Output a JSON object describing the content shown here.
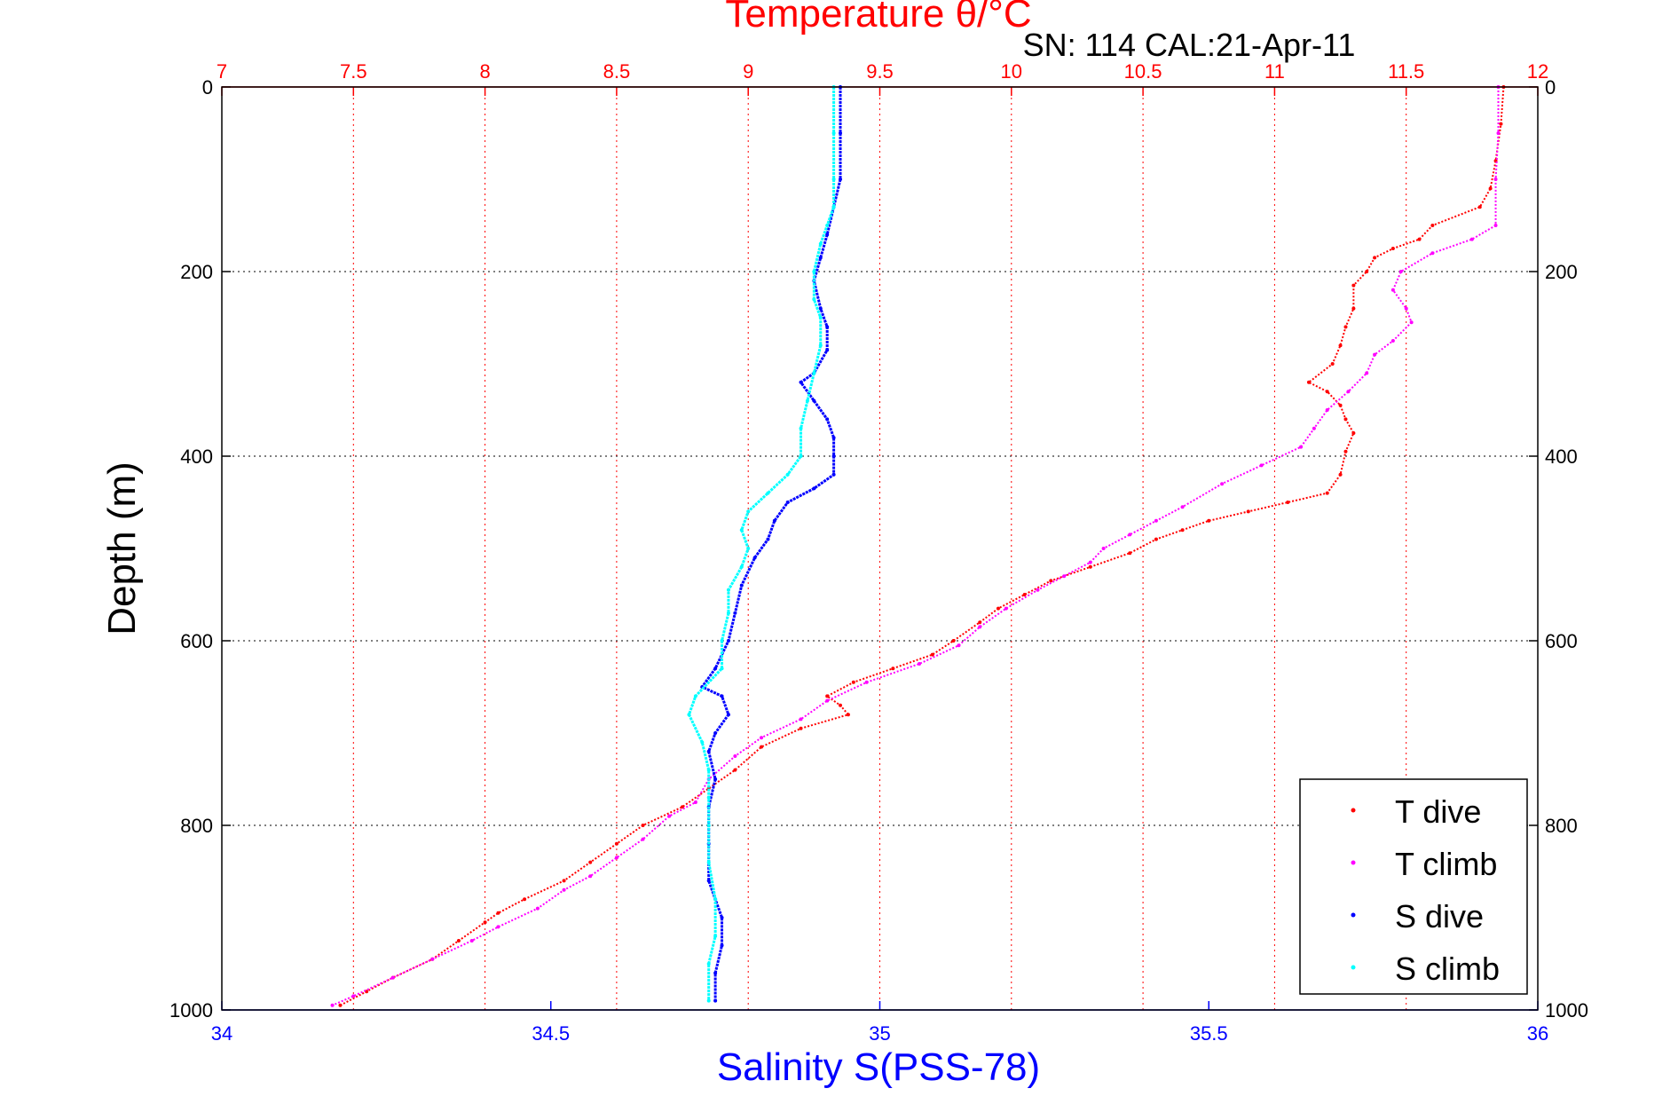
{
  "chart_data": {
    "type": "scatter",
    "title": "Temperature θ/°C",
    "subtitle": "SN: 114  CAL:21-Apr-11",
    "ylabel": "Depth (m)",
    "x_bottom_label": "Salinity S(PSS-78)",
    "x_top_label": "Temperature θ/°C",
    "y_range": [
      0,
      1000
    ],
    "y_reversed": true,
    "y_ticks": [
      "0",
      "200",
      "400",
      "600",
      "800",
      "1000"
    ],
    "x_top_range": [
      7,
      12
    ],
    "x_top_ticks": [
      "7",
      "7.5",
      "8",
      "8.5",
      "9",
      "9.5",
      "10",
      "10.5",
      "11",
      "11.5",
      "12"
    ],
    "x_bottom_range": [
      34,
      36
    ],
    "x_bottom_ticks": [
      "34",
      "34.5",
      "35",
      "35.5",
      "36"
    ],
    "grid": true,
    "legend_position": "bottom-right",
    "colors": {
      "temperature_axis": "#ff0000",
      "salinity_axis": "#0000ff",
      "grid": "#000000"
    },
    "series": [
      {
        "name": "T dive",
        "axis": "temperature",
        "color": "#ff0000",
        "points": [
          [
            11.87,
            0
          ],
          [
            11.86,
            40
          ],
          [
            11.84,
            80
          ],
          [
            11.82,
            110
          ],
          [
            11.78,
            130
          ],
          [
            11.6,
            150
          ],
          [
            11.55,
            165
          ],
          [
            11.45,
            175
          ],
          [
            11.38,
            185
          ],
          [
            11.35,
            200
          ],
          [
            11.3,
            215
          ],
          [
            11.3,
            240
          ],
          [
            11.27,
            260
          ],
          [
            11.25,
            280
          ],
          [
            11.22,
            300
          ],
          [
            11.13,
            320
          ],
          [
            11.2,
            330
          ],
          [
            11.25,
            345
          ],
          [
            11.27,
            360
          ],
          [
            11.3,
            375
          ],
          [
            11.27,
            395
          ],
          [
            11.25,
            420
          ],
          [
            11.2,
            440
          ],
          [
            11.05,
            450
          ],
          [
            10.9,
            460
          ],
          [
            10.75,
            470
          ],
          [
            10.65,
            480
          ],
          [
            10.55,
            490
          ],
          [
            10.45,
            505
          ],
          [
            10.3,
            520
          ],
          [
            10.15,
            535
          ],
          [
            10.05,
            550
          ],
          [
            9.95,
            565
          ],
          [
            9.88,
            580
          ],
          [
            9.78,
            600
          ],
          [
            9.7,
            615
          ],
          [
            9.55,
            630
          ],
          [
            9.4,
            645
          ],
          [
            9.3,
            660
          ],
          [
            9.35,
            670
          ],
          [
            9.38,
            680
          ],
          [
            9.2,
            695
          ],
          [
            9.05,
            715
          ],
          [
            8.95,
            740
          ],
          [
            8.85,
            760
          ],
          [
            8.75,
            780
          ],
          [
            8.6,
            800
          ],
          [
            8.5,
            820
          ],
          [
            8.4,
            840
          ],
          [
            8.3,
            860
          ],
          [
            8.15,
            880
          ],
          [
            8.05,
            895
          ],
          [
            8.0,
            905
          ],
          [
            7.9,
            925
          ],
          [
            7.8,
            945
          ],
          [
            7.65,
            965
          ],
          [
            7.55,
            980
          ],
          [
            7.45,
            995
          ]
        ]
      },
      {
        "name": "T climb",
        "axis": "temperature",
        "color": "#ff00ff",
        "points": [
          [
            11.85,
            0
          ],
          [
            11.85,
            50
          ],
          [
            11.84,
            100
          ],
          [
            11.84,
            150
          ],
          [
            11.75,
            165
          ],
          [
            11.6,
            180
          ],
          [
            11.48,
            200
          ],
          [
            11.45,
            220
          ],
          [
            11.5,
            240
          ],
          [
            11.52,
            255
          ],
          [
            11.45,
            275
          ],
          [
            11.38,
            290
          ],
          [
            11.35,
            310
          ],
          [
            11.28,
            330
          ],
          [
            11.2,
            350
          ],
          [
            11.15,
            370
          ],
          [
            11.1,
            390
          ],
          [
            10.95,
            410
          ],
          [
            10.8,
            430
          ],
          [
            10.65,
            455
          ],
          [
            10.55,
            470
          ],
          [
            10.45,
            485
          ],
          [
            10.35,
            500
          ],
          [
            10.3,
            515
          ],
          [
            10.2,
            530
          ],
          [
            10.1,
            545
          ],
          [
            9.98,
            565
          ],
          [
            9.88,
            585
          ],
          [
            9.8,
            605
          ],
          [
            9.65,
            625
          ],
          [
            9.45,
            645
          ],
          [
            9.3,
            665
          ],
          [
            9.2,
            685
          ],
          [
            9.05,
            705
          ],
          [
            8.95,
            725
          ],
          [
            8.85,
            750
          ],
          [
            8.8,
            775
          ],
          [
            8.7,
            790
          ],
          [
            8.6,
            815
          ],
          [
            8.5,
            835
          ],
          [
            8.4,
            855
          ],
          [
            8.3,
            870
          ],
          [
            8.2,
            890
          ],
          [
            8.05,
            910
          ],
          [
            7.95,
            925
          ],
          [
            7.8,
            945
          ],
          [
            7.65,
            965
          ],
          [
            7.5,
            985
          ],
          [
            7.42,
            995
          ]
        ]
      },
      {
        "name": "S dive",
        "axis": "salinity",
        "color": "#0000ff",
        "points": [
          [
            34.94,
            0
          ],
          [
            34.94,
            50
          ],
          [
            34.94,
            100
          ],
          [
            34.93,
            130
          ],
          [
            34.92,
            160
          ],
          [
            34.91,
            185
          ],
          [
            34.9,
            210
          ],
          [
            34.91,
            240
          ],
          [
            34.92,
            260
          ],
          [
            34.92,
            285
          ],
          [
            34.9,
            310
          ],
          [
            34.88,
            320
          ],
          [
            34.9,
            340
          ],
          [
            34.92,
            360
          ],
          [
            34.93,
            380
          ],
          [
            34.93,
            400
          ],
          [
            34.93,
            420
          ],
          [
            34.9,
            435
          ],
          [
            34.86,
            450
          ],
          [
            34.84,
            470
          ],
          [
            34.83,
            490
          ],
          [
            34.81,
            510
          ],
          [
            34.79,
            540
          ],
          [
            34.78,
            570
          ],
          [
            34.77,
            600
          ],
          [
            34.75,
            630
          ],
          [
            34.73,
            650
          ],
          [
            34.76,
            660
          ],
          [
            34.77,
            680
          ],
          [
            34.75,
            700
          ],
          [
            34.74,
            720
          ],
          [
            34.75,
            750
          ],
          [
            34.74,
            780
          ],
          [
            34.74,
            820
          ],
          [
            34.74,
            860
          ],
          [
            34.75,
            880
          ],
          [
            34.76,
            900
          ],
          [
            34.76,
            930
          ],
          [
            34.75,
            960
          ],
          [
            34.75,
            990
          ]
        ]
      },
      {
        "name": "S climb",
        "axis": "salinity",
        "color": "#00ffff",
        "points": [
          [
            34.93,
            0
          ],
          [
            34.93,
            50
          ],
          [
            34.93,
            100
          ],
          [
            34.93,
            130
          ],
          [
            34.92,
            150
          ],
          [
            34.91,
            170
          ],
          [
            34.9,
            200
          ],
          [
            34.9,
            230
          ],
          [
            34.91,
            250
          ],
          [
            34.91,
            280
          ],
          [
            34.9,
            310
          ],
          [
            34.89,
            340
          ],
          [
            34.88,
            370
          ],
          [
            34.88,
            400
          ],
          [
            34.86,
            420
          ],
          [
            34.83,
            440
          ],
          [
            34.8,
            460
          ],
          [
            34.79,
            480
          ],
          [
            34.8,
            500
          ],
          [
            34.79,
            520
          ],
          [
            34.77,
            545
          ],
          [
            34.77,
            570
          ],
          [
            34.76,
            600
          ],
          [
            34.76,
            630
          ],
          [
            34.72,
            660
          ],
          [
            34.71,
            680
          ],
          [
            34.73,
            710
          ],
          [
            34.74,
            740
          ],
          [
            34.74,
            770
          ],
          [
            34.74,
            800
          ],
          [
            34.74,
            840
          ],
          [
            34.75,
            880
          ],
          [
            34.75,
            920
          ],
          [
            34.74,
            950
          ],
          [
            34.74,
            990
          ]
        ]
      }
    ],
    "legend": [
      "T dive",
      "T climb",
      "S dive",
      "S climb"
    ]
  }
}
